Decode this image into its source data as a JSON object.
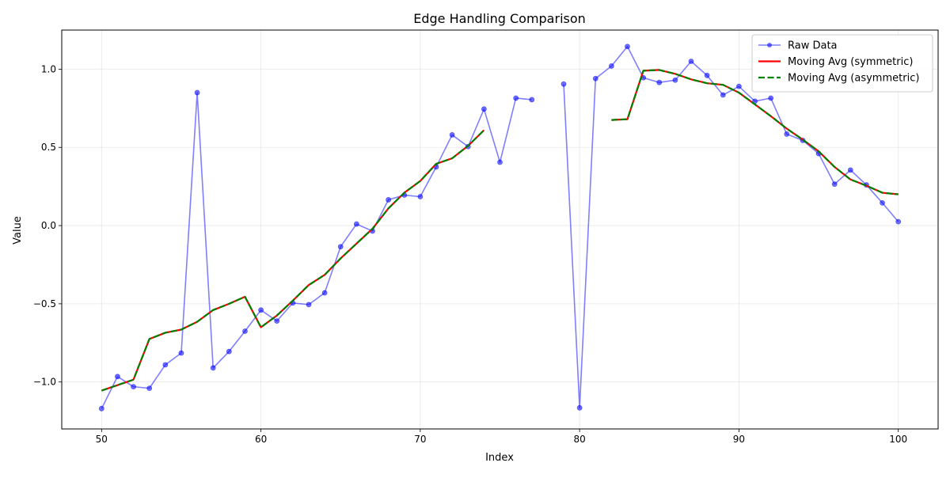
{
  "chart_data": {
    "type": "line",
    "title": "Edge Handling Comparison",
    "xlabel": "Index",
    "ylabel": "Value",
    "xlim": [
      47.5,
      102.5
    ],
    "ylim": [
      -1.3,
      1.25
    ],
    "xticks": [
      50,
      60,
      70,
      80,
      90,
      100
    ],
    "xtick_labels": [
      "50",
      "60",
      "70",
      "80",
      "90",
      "100"
    ],
    "yticks": [
      -1.0,
      -0.5,
      0.0,
      0.5,
      1.0
    ],
    "ytick_labels": [
      "−1.0",
      "−0.5",
      "0.0",
      "0.5",
      "1.0"
    ],
    "grid": true,
    "legend_position": "upper right",
    "series": [
      {
        "name": "Raw Data",
        "style": "line-with-markers",
        "color": "#0000ff",
        "points": [
          [
            50,
            -1.17
          ],
          [
            51,
            -0.965
          ],
          [
            52,
            -1.03
          ],
          [
            53,
            -1.04
          ],
          [
            54,
            -0.89
          ],
          [
            55,
            -0.815
          ],
          [
            56,
            0.85
          ],
          [
            57,
            -0.91
          ],
          [
            58,
            -0.805
          ],
          [
            59,
            -0.675
          ],
          [
            60,
            -0.54
          ],
          [
            61,
            -0.61
          ],
          [
            62,
            -0.495
          ],
          [
            63,
            -0.505
          ],
          [
            64,
            -0.43
          ],
          [
            65,
            -0.135
          ],
          [
            66,
            0.01
          ],
          [
            67,
            -0.035
          ],
          [
            68,
            0.165
          ],
          [
            69,
            0.195
          ],
          [
            70,
            0.185
          ],
          [
            71,
            0.375
          ],
          [
            72,
            0.58
          ],
          [
            73,
            0.505
          ],
          [
            74,
            0.745
          ],
          [
            75,
            0.405
          ],
          [
            76,
            0.815
          ],
          [
            77,
            0.805
          ],
          [
            78,
            null
          ],
          [
            79,
            0.905
          ],
          [
            80,
            -1.165
          ],
          [
            81,
            0.94
          ],
          [
            82,
            1.02
          ],
          [
            83,
            1.145
          ],
          [
            84,
            0.945
          ],
          [
            85,
            0.915
          ],
          [
            86,
            0.93
          ],
          [
            87,
            1.05
          ],
          [
            88,
            0.96
          ],
          [
            89,
            0.835
          ],
          [
            90,
            0.89
          ],
          [
            91,
            0.795
          ],
          [
            92,
            0.815
          ],
          [
            93,
            0.585
          ],
          [
            94,
            0.545
          ],
          [
            95,
            0.46
          ],
          [
            96,
            0.265
          ],
          [
            97,
            0.355
          ],
          [
            98,
            0.26
          ],
          [
            99,
            0.145
          ],
          [
            100,
            0.025
          ]
        ]
      },
      {
        "name": "Moving Avg (symmetric)",
        "style": "solid",
        "color": "#ff0000",
        "points": [
          [
            50,
            -1.055
          ],
          [
            51,
            -1.02
          ],
          [
            52,
            -0.985
          ],
          [
            53,
            -0.725
          ],
          [
            54,
            -0.685
          ],
          [
            55,
            -0.665
          ],
          [
            56,
            -0.615
          ],
          [
            57,
            -0.54
          ],
          [
            58,
            -0.5
          ],
          [
            59,
            -0.455
          ],
          [
            60,
            -0.65
          ],
          [
            61,
            -0.575
          ],
          [
            62,
            -0.48
          ],
          [
            63,
            -0.38
          ],
          [
            64,
            -0.315
          ],
          [
            65,
            -0.21
          ],
          [
            66,
            -0.115
          ],
          [
            67,
            -0.02
          ],
          [
            68,
            0.11
          ],
          [
            69,
            0.21
          ],
          [
            70,
            0.285
          ],
          [
            71,
            0.395
          ],
          [
            72,
            0.43
          ],
          [
            73,
            0.51
          ],
          [
            74,
            0.61
          ],
          [
            75,
            null
          ],
          [
            82,
            0.675
          ],
          [
            83,
            0.68
          ],
          [
            84,
            0.99
          ],
          [
            85,
            0.995
          ],
          [
            86,
            0.97
          ],
          [
            87,
            0.935
          ],
          [
            88,
            0.91
          ],
          [
            89,
            0.9
          ],
          [
            90,
            0.85
          ],
          [
            91,
            0.775
          ],
          [
            92,
            0.7
          ],
          [
            93,
            0.62
          ],
          [
            94,
            0.55
          ],
          [
            95,
            0.475
          ],
          [
            96,
            0.375
          ],
          [
            97,
            0.295
          ],
          [
            98,
            0.255
          ],
          [
            99,
            0.21
          ],
          [
            100,
            0.2
          ]
        ]
      },
      {
        "name": "Moving Avg (asymmetric)",
        "style": "dashed",
        "color": "#008000",
        "points": [
          [
            50,
            -1.055
          ],
          [
            51,
            -1.02
          ],
          [
            52,
            -0.985
          ],
          [
            53,
            -0.725
          ],
          [
            54,
            -0.685
          ],
          [
            55,
            -0.665
          ],
          [
            56,
            -0.615
          ],
          [
            57,
            -0.54
          ],
          [
            58,
            -0.5
          ],
          [
            59,
            -0.455
          ],
          [
            60,
            -0.65
          ],
          [
            61,
            -0.575
          ],
          [
            62,
            -0.48
          ],
          [
            63,
            -0.38
          ],
          [
            64,
            -0.315
          ],
          [
            65,
            -0.21
          ],
          [
            66,
            -0.115
          ],
          [
            67,
            -0.02
          ],
          [
            68,
            0.11
          ],
          [
            69,
            0.21
          ],
          [
            70,
            0.285
          ],
          [
            71,
            0.395
          ],
          [
            72,
            0.43
          ],
          [
            73,
            0.51
          ],
          [
            74,
            0.61
          ],
          [
            75,
            null
          ],
          [
            82,
            0.675
          ],
          [
            83,
            0.68
          ],
          [
            84,
            0.99
          ],
          [
            85,
            0.995
          ],
          [
            86,
            0.97
          ],
          [
            87,
            0.935
          ],
          [
            88,
            0.91
          ],
          [
            89,
            0.9
          ],
          [
            90,
            0.85
          ],
          [
            91,
            0.775
          ],
          [
            92,
            0.7
          ],
          [
            93,
            0.62
          ],
          [
            94,
            0.55
          ],
          [
            95,
            0.475
          ],
          [
            96,
            0.375
          ],
          [
            97,
            0.295
          ],
          [
            98,
            0.255
          ],
          [
            99,
            0.21
          ],
          [
            100,
            0.2
          ]
        ]
      }
    ]
  }
}
